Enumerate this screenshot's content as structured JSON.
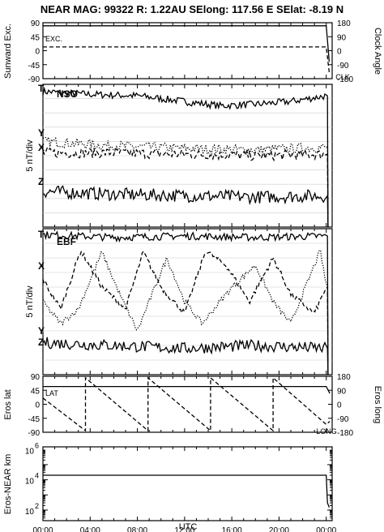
{
  "header": {
    "title": "NEAR MAG: 99322  R: 1.22AU  SElong: 117.56 E  SElat:  -8.19 N"
  },
  "chart_data": [
    {
      "type": "line",
      "panel": "sunward",
      "ylabel": "Sunward Exc.",
      "y2label": "Clock Angle",
      "yticks": [
        "90",
        "45",
        "0",
        "-45",
        "-90"
      ],
      "y2ticks": [
        "180",
        "90",
        "0",
        "-90",
        "-180"
      ],
      "ylim": [
        -90,
        90
      ],
      "grid": false,
      "x": [
        0,
        24,
        24.25
      ],
      "series": [
        {
          "name": "EXC.",
          "style": "solid",
          "values": [
            80,
            80,
            -35
          ]
        },
        {
          "name": "CLK",
          "style": "dashed",
          "values": [
            12,
            12,
            -70
          ]
        }
      ]
    },
    {
      "type": "line",
      "panel": "nso",
      "label": "NSO",
      "ylabel": "5 nT/div",
      "xlim": [
        0,
        24.5
      ],
      "grid": true,
      "series": [
        {
          "name": "T",
          "style": "solid",
          "noise": 2.5,
          "profile": [
            [
              0,
              95
            ],
            [
              4,
              93
            ],
            [
              8,
              92
            ],
            [
              12,
              88
            ],
            [
              15,
              85
            ],
            [
              18,
              86
            ],
            [
              21,
              88
            ],
            [
              24,
              92
            ]
          ]
        },
        {
          "name": "Y",
          "style": "dotted",
          "noise": 3.5,
          "profile": [
            [
              0,
              60
            ],
            [
              6,
              57
            ],
            [
              12,
              55
            ],
            [
              18,
              54
            ],
            [
              24,
              56
            ]
          ]
        },
        {
          "name": "X",
          "style": "dashed",
          "noise": 3.5,
          "profile": [
            [
              0,
              52
            ],
            [
              6,
              52
            ],
            [
              12,
              51
            ],
            [
              18,
              50
            ],
            [
              24,
              51
            ]
          ]
        },
        {
          "name": "Z",
          "style": "solid",
          "noise": 4.5,
          "profile": [
            [
              0,
              25
            ],
            [
              6,
              23
            ],
            [
              12,
              22
            ],
            [
              18,
              21
            ],
            [
              24,
              22
            ]
          ]
        }
      ]
    },
    {
      "type": "line",
      "panel": "ebf",
      "label": "EBF",
      "ylabel": "5 nT/div",
      "xlim": [
        0,
        24.5
      ],
      "grid": true,
      "series": [
        {
          "name": "T",
          "style": "solid",
          "noise": 2.5,
          "profile": [
            [
              0,
              96
            ],
            [
              6,
              94
            ],
            [
              12,
              95
            ],
            [
              18,
              94
            ],
            [
              24,
              95
            ]
          ]
        },
        {
          "name": "X",
          "style": "dashed",
          "noise": 2.0,
          "profile": [
            [
              0,
              65
            ],
            [
              1.5,
              45
            ],
            [
              3.2,
              85
            ],
            [
              5,
              60
            ],
            [
              7,
              45
            ],
            [
              8.5,
              84
            ],
            [
              10,
              60
            ],
            [
              12,
              42
            ],
            [
              13.8,
              85
            ],
            [
              15.5,
              75
            ],
            [
              17.5,
              50
            ],
            [
              19.5,
              80
            ],
            [
              21,
              55
            ],
            [
              23,
              42
            ],
            [
              24,
              60
            ]
          ]
        },
        {
          "name": "Y",
          "style": "dotted",
          "noise": 2.0,
          "profile": [
            [
              0,
              50
            ],
            [
              1.5,
              35
            ],
            [
              3,
              45
            ],
            [
              5,
              84
            ],
            [
              6.5,
              55
            ],
            [
              8,
              30
            ],
            [
              10.5,
              80
            ],
            [
              12,
              50
            ],
            [
              13.5,
              35
            ],
            [
              16,
              60
            ],
            [
              18,
              75
            ],
            [
              19.5,
              50
            ],
            [
              21,
              35
            ],
            [
              23.5,
              85
            ],
            [
              24,
              60
            ]
          ]
        },
        {
          "name": "Z",
          "style": "solid",
          "noise": 4.0,
          "profile": [
            [
              0,
              22
            ],
            [
              6,
              20
            ],
            [
              12,
              18
            ],
            [
              18,
              20
            ],
            [
              24,
              18
            ]
          ]
        }
      ]
    },
    {
      "type": "line",
      "panel": "eros_angles",
      "ylabel": "Eros lat",
      "y2label": "Eros long",
      "yticks": [
        "90",
        "45",
        "0",
        "-45",
        "-90"
      ],
      "y2ticks": [
        "180",
        "90",
        "0",
        "-90",
        "-180"
      ],
      "ylim": [
        -90,
        90
      ],
      "grid": false,
      "series": [
        {
          "name": "LAT",
          "style": "solid",
          "x": [
            0,
            24,
            24.3
          ],
          "values": [
            57,
            57,
            35
          ]
        },
        {
          "name": "LONG",
          "style": "dashed",
          "x": [
            0,
            3.6,
            3.6,
            8.9,
            8.9,
            14.2,
            14.2,
            19.5,
            19.5,
            24,
            24.3
          ],
          "values": [
            20,
            -85,
            85,
            -85,
            85,
            -85,
            85,
            -85,
            85,
            -65,
            -55
          ]
        }
      ]
    },
    {
      "type": "line",
      "panel": "distance",
      "ylabel": "Eros-NEAR km",
      "yscale": "log",
      "ylim": [
        20,
        1500000
      ],
      "yticks": [
        {
          "v": 100,
          "base": "10",
          "exp": "2"
        },
        {
          "v": 10000,
          "base": "10",
          "exp": "4"
        },
        {
          "v": 1000000,
          "base": "10",
          "exp": "6"
        }
      ],
      "grid": false,
      "x": [
        0,
        24,
        24.1,
        24.25
      ],
      "series": [
        {
          "name": "distance",
          "style": "solid",
          "values": [
            20000,
            20000,
            300,
            150
          ]
        }
      ]
    }
  ],
  "x_axis": {
    "xlabel": "UTC",
    "ticks": [
      "00:00",
      "04:00",
      "08:00",
      "12:00",
      "16:00",
      "20:00",
      "00:00"
    ],
    "tick_hours": [
      0,
      4,
      8,
      12,
      16,
      20,
      24
    ]
  },
  "colors": {
    "line": "#000000",
    "grid": "#cccccc",
    "background": "#ffffff"
  }
}
